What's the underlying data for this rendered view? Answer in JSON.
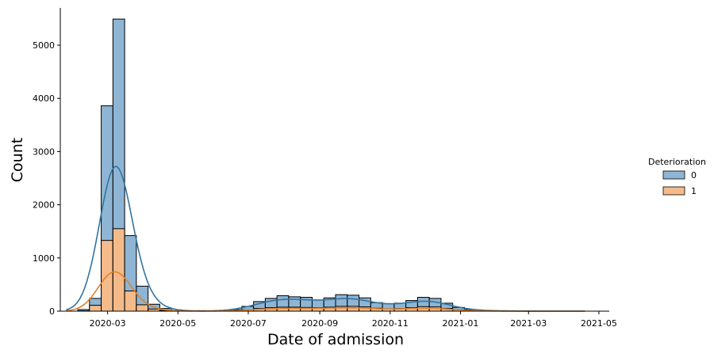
{
  "chart_data": {
    "type": "bar",
    "subtype": "stacked-histogram-with-kde",
    "title": "",
    "xlabel": "Date of admission",
    "ylabel": "Count",
    "ylim": [
      0,
      5700
    ],
    "x_range": [
      "2020-01-20",
      "2021-05-10"
    ],
    "yticks": [
      0,
      1000,
      2000,
      3000,
      4000,
      5000
    ],
    "xticks": [
      "2020-03",
      "2020-05",
      "2020-07",
      "2020-09",
      "2020-11",
      "2021-01",
      "2021-03",
      "2021-05"
    ],
    "grid": false,
    "legend": {
      "title": "Deterioration",
      "position": "right"
    },
    "bin_width_days": 10.16,
    "first_bin_start": "2020-01-25",
    "series": [
      {
        "name": "0",
        "color": "#3274a1",
        "fill": "#8eb5d3",
        "totals": [
          0,
          30,
          240,
          3860,
          5490,
          1420,
          470,
          130,
          50,
          10,
          5,
          5,
          5,
          10,
          30,
          90,
          180,
          240,
          290,
          270,
          260,
          210,
          250,
          310,
          300,
          250,
          160,
          140,
          150,
          200,
          260,
          240,
          150,
          70,
          30,
          15,
          10,
          5,
          5
        ]
      },
      {
        "name": "1",
        "color": "#e1812c",
        "fill": "#f4ba8a",
        "values": [
          0,
          5,
          110,
          1330,
          1550,
          380,
          120,
          40,
          15,
          5,
          2,
          2,
          2,
          5,
          10,
          25,
          50,
          65,
          75,
          75,
          70,
          65,
          75,
          90,
          90,
          80,
          55,
          45,
          50,
          65,
          85,
          80,
          50,
          25,
          10,
          5,
          3,
          2,
          2
        ]
      }
    ]
  }
}
